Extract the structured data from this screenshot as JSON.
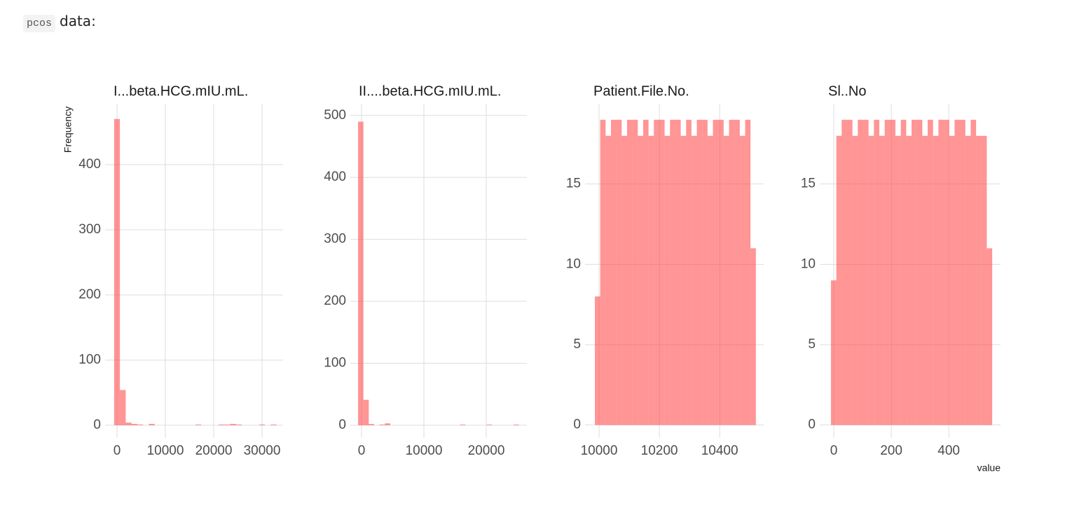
{
  "text": {
    "code": "pcos",
    "label": "data:"
  },
  "chart_data": [
    {
      "type": "histogram",
      "title": "I...beta.HCG.mIU.mL.",
      "ylabel": "Frequency",
      "color": "#ff4444",
      "grid": true,
      "bins": [
        -600,
        600,
        1800,
        3000,
        4200,
        5400,
        6600,
        7800,
        9000,
        10200,
        11400,
        12600,
        13800,
        15000,
        16200,
        17400,
        18600,
        19800,
        21000,
        22200,
        23400,
        24600,
        25800,
        27000,
        28200,
        29400,
        30600,
        31800,
        33000
      ],
      "counts": [
        470,
        54,
        4,
        2,
        1,
        0,
        2,
        0,
        0,
        0,
        0,
        0,
        0,
        0,
        1,
        0,
        0,
        0,
        1,
        1,
        2,
        1,
        0,
        0,
        0,
        1,
        0,
        1
      ],
      "xlim": [
        -2464,
        34348
      ],
      "ylim": [
        -19.4,
        493.5
      ],
      "xticks": [
        0,
        10000,
        20000,
        30000
      ],
      "yticks": [
        0,
        100,
        200,
        300,
        400
      ]
    },
    {
      "type": "histogram",
      "title": "II....beta.HCG.mIU.mL.",
      "color": "#ff4444",
      "grid": true,
      "bins": [
        -560,
        300,
        1160,
        2020,
        2880,
        3740,
        4600,
        5460,
        6320,
        7180,
        8040,
        8900,
        9760,
        10620,
        11480,
        12340,
        13200,
        14060,
        14920,
        15780,
        16640,
        17500,
        18360,
        19220,
        20080,
        20940,
        21800,
        22660,
        23520,
        24380,
        25240
      ],
      "counts": [
        490,
        41,
        2,
        0,
        1,
        3,
        0,
        0,
        0,
        0,
        0,
        0,
        0,
        0,
        0,
        0,
        0,
        0,
        0,
        1,
        0,
        0,
        0,
        0,
        1,
        0,
        0,
        0,
        0,
        1
      ],
      "xlim": [
        -1798,
        26517
      ],
      "ylim": [
        -20.4,
        519
      ],
      "xticks": [
        0,
        10000,
        20000
      ],
      "yticks": [
        0,
        100,
        200,
        300,
        400,
        500
      ]
    },
    {
      "type": "histogram",
      "title": "Patient.File.No.",
      "color": "#ff4444",
      "grid": true,
      "bins": [
        9986,
        10003.8,
        10021.6,
        10039.4,
        10057.2,
        10075,
        10092.8,
        10110.6,
        10128.4,
        10146.2,
        10164,
        10181.8,
        10199.6,
        10217.4,
        10235.2,
        10253,
        10270.8,
        10288.6,
        10306.4,
        10324.2,
        10342,
        10359.8,
        10377.6,
        10395.4,
        10413.2,
        10431,
        10448.8,
        10466.6,
        10484.4,
        10502.2,
        10520
      ],
      "counts": [
        8,
        19,
        18,
        19,
        19,
        18,
        19,
        19,
        18,
        19,
        18,
        19,
        19,
        18,
        19,
        19,
        18,
        19,
        18,
        19,
        19,
        18,
        19,
        19,
        18,
        19,
        19,
        18,
        19,
        11
      ],
      "xlim": [
        9953.5,
        10546
      ],
      "ylim": [
        -0.8,
        20.0
      ],
      "xticks": [
        10000,
        10200,
        10400
      ],
      "yticks": [
        0,
        5,
        10,
        15
      ]
    },
    {
      "type": "histogram",
      "title": "Sl..No",
      "xlabel": "value",
      "color": "#ff4444",
      "grid": true,
      "bins": [
        -10,
        8.7,
        27.4,
        46.1,
        64.8,
        83.5,
        102.2,
        120.9,
        139.6,
        158.3,
        177,
        195.7,
        214.4,
        233.1,
        251.8,
        270.5,
        289.2,
        307.9,
        326.6,
        345.3,
        364,
        382.7,
        401.4,
        420.1,
        438.8,
        457.5,
        476.2,
        494.9,
        513.6,
        532.3,
        551
      ],
      "counts": [
        9,
        18,
        19,
        19,
        18,
        19,
        19,
        18,
        19,
        18,
        19,
        19,
        18,
        19,
        18,
        19,
        19,
        18,
        19,
        18,
        19,
        19,
        18,
        19,
        19,
        18,
        19,
        18,
        18,
        11
      ],
      "xlim": [
        -48.8,
        580
      ],
      "ylim": [
        -0.8,
        20.0
      ],
      "xticks": [
        0,
        200,
        400
      ],
      "yticks": [
        0,
        5,
        10,
        15
      ]
    }
  ]
}
